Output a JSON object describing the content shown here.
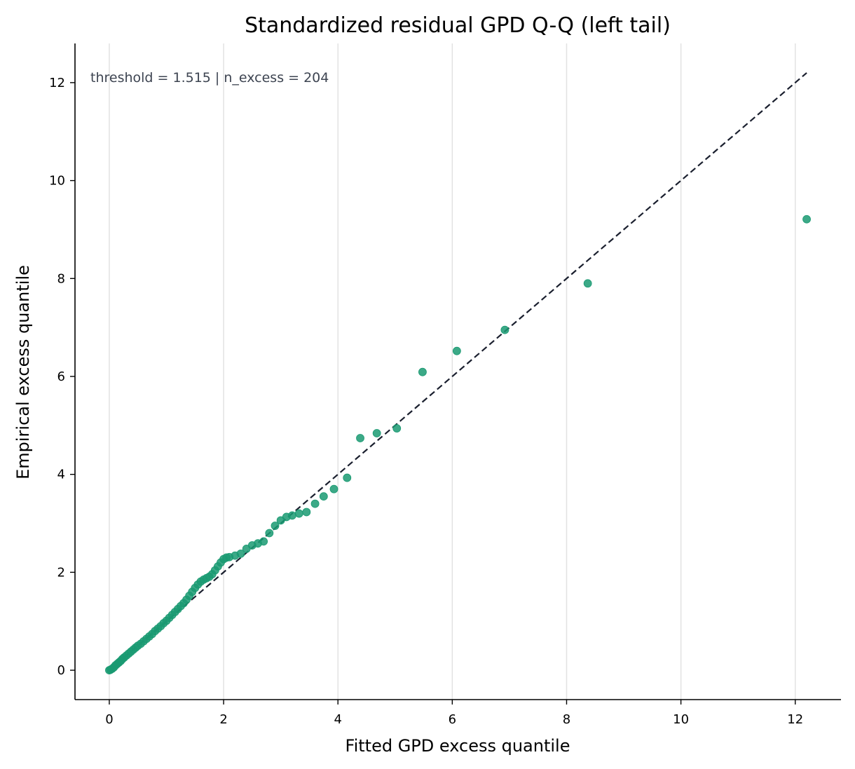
{
  "chart_data": {
    "type": "scatter",
    "title": "Standardized residual GPD Q-Q (left tail)",
    "xlabel": "Fitted GPD excess quantile",
    "ylabel": "Empirical excess quantile",
    "annotation": "threshold = 1.515  |  n_excess = 204",
    "xlim": [
      -0.6,
      12.8
    ],
    "ylim": [
      -0.6,
      12.8
    ],
    "xticks": [
      0,
      2,
      4,
      6,
      8,
      10,
      12
    ],
    "yticks": [
      0,
      2,
      4,
      6,
      8,
      10,
      12
    ],
    "grid": "vertical",
    "marker_color": "#1a9a72",
    "reference_line": {
      "style": "dashed",
      "color": "#1a1f2e",
      "from": [
        0,
        0
      ],
      "to": [
        12.2,
        12.2
      ]
    },
    "points": [
      [
        0.0,
        0.0
      ],
      [
        0.02,
        0.01
      ],
      [
        0.05,
        0.03
      ],
      [
        0.08,
        0.06
      ],
      [
        0.11,
        0.1
      ],
      [
        0.14,
        0.13
      ],
      [
        0.17,
        0.16
      ],
      [
        0.2,
        0.19
      ],
      [
        0.23,
        0.23
      ],
      [
        0.26,
        0.26
      ],
      [
        0.3,
        0.3
      ],
      [
        0.34,
        0.34
      ],
      [
        0.38,
        0.38
      ],
      [
        0.42,
        0.42
      ],
      [
        0.46,
        0.46
      ],
      [
        0.5,
        0.5
      ],
      [
        0.55,
        0.54
      ],
      [
        0.6,
        0.59
      ],
      [
        0.65,
        0.64
      ],
      [
        0.7,
        0.69
      ],
      [
        0.75,
        0.74
      ],
      [
        0.8,
        0.8
      ],
      [
        0.85,
        0.85
      ],
      [
        0.9,
        0.9
      ],
      [
        0.95,
        0.96
      ],
      [
        1.0,
        1.01
      ],
      [
        1.05,
        1.07
      ],
      [
        1.1,
        1.13
      ],
      [
        1.15,
        1.19
      ],
      [
        1.2,
        1.25
      ],
      [
        1.25,
        1.31
      ],
      [
        1.3,
        1.37
      ],
      [
        1.35,
        1.44
      ],
      [
        1.4,
        1.52
      ],
      [
        1.45,
        1.6
      ],
      [
        1.5,
        1.68
      ],
      [
        1.55,
        1.75
      ],
      [
        1.6,
        1.81
      ],
      [
        1.65,
        1.85
      ],
      [
        1.7,
        1.88
      ],
      [
        1.75,
        1.91
      ],
      [
        1.8,
        1.96
      ],
      [
        1.85,
        2.04
      ],
      [
        1.9,
        2.12
      ],
      [
        1.95,
        2.2
      ],
      [
        2.0,
        2.27
      ],
      [
        2.05,
        2.3
      ],
      [
        2.1,
        2.31
      ],
      [
        2.2,
        2.34
      ],
      [
        2.3,
        2.38
      ],
      [
        2.4,
        2.48
      ],
      [
        2.5,
        2.55
      ],
      [
        2.6,
        2.59
      ],
      [
        2.7,
        2.63
      ],
      [
        2.8,
        2.8
      ],
      [
        2.9,
        2.95
      ],
      [
        3.0,
        3.06
      ],
      [
        3.1,
        3.13
      ],
      [
        3.2,
        3.16
      ],
      [
        3.32,
        3.2
      ],
      [
        3.45,
        3.23
      ],
      [
        3.6,
        3.4
      ],
      [
        3.75,
        3.55
      ],
      [
        3.93,
        3.7
      ],
      [
        4.16,
        3.93
      ],
      [
        4.39,
        4.74
      ],
      [
        4.68,
        4.84
      ],
      [
        5.03,
        4.94
      ],
      [
        5.48,
        6.09
      ],
      [
        6.08,
        6.52
      ],
      [
        6.92,
        6.95
      ],
      [
        8.37,
        7.9
      ],
      [
        12.2,
        9.21
      ]
    ]
  }
}
